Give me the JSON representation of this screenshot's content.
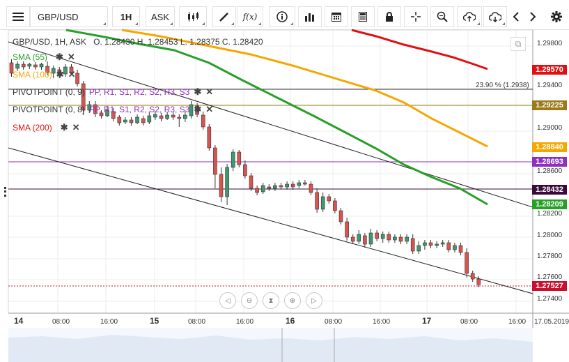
{
  "toolbar": {
    "symbol": "GBP/USD",
    "timeframe": "1H",
    "price_side": "ASK",
    "fx_label": "f(x)"
  },
  "chart": {
    "ohlc": "O. 1.28430 H. 1.28453 L. 1.28375 C. 1.28420",
    "header_prefix": "GBP/USD, 1H, ASK",
    "indicators": [
      {
        "label": "SMA (55)",
        "color": "#27a027"
      },
      {
        "label": "SMA (100)",
        "color": "#f5a700"
      },
      {
        "label": "PIVOTPOINT (0, 9)",
        "extra": "PP, R1, S1, R2, S2, R3, S3",
        "color": "#333333"
      },
      {
        "label": "PIVOTPOINT (0, 8)",
        "extra": "PP, R1, S1, R2, S2, R3, S3",
        "color": "#333333"
      },
      {
        "label": "SMA (200)",
        "color": "#e01010"
      }
    ],
    "fib_label": "23.90 % (1.2938)",
    "price_axis": [
      "1.29800",
      "1.29400",
      "1.29000",
      "1.28600",
      "1.28200",
      "1.28000",
      "1.27800",
      "1.27600",
      "1.27400"
    ],
    "price_tags": [
      {
        "value": "1.29570",
        "color": "#e01010"
      },
      {
        "value": "1.29225",
        "color": "#9a7a1a"
      },
      {
        "value": "1.28840",
        "color": "#f5a700"
      },
      {
        "value": "1.28693",
        "color": "#8e2fbf"
      },
      {
        "value": "1.28432",
        "color": "#3a0a3a"
      },
      {
        "value": "1.28209",
        "color": "#27a027"
      },
      {
        "value": "1.27527",
        "color": "#c8102e"
      }
    ],
    "time_axis": [
      {
        "label": "14",
        "day": true
      },
      {
        "label": "08:00",
        "day": false
      },
      {
        "label": "16:00",
        "day": false
      },
      {
        "label": "15",
        "day": true
      },
      {
        "label": "08:00",
        "day": false
      },
      {
        "label": "16:00",
        "day": false
      },
      {
        "label": "16",
        "day": true
      },
      {
        "label": "08:00",
        "day": false
      },
      {
        "label": "16:00",
        "day": false
      },
      {
        "label": "17",
        "day": true
      },
      {
        "label": "08:00",
        "day": false
      },
      {
        "label": "16:00",
        "day": false
      },
      {
        "label": "17.05.2019",
        "day": false
      }
    ]
  },
  "icons": [
    "menu-icon",
    "draw-icon",
    "info-icon",
    "bars-icon",
    "calendar-icon",
    "news-icon",
    "lock-icon",
    "crosshair-icon",
    "zoom-icon",
    "upload-icon",
    "download-icon",
    "prev-icon",
    "next-icon",
    "gear-icon"
  ]
}
